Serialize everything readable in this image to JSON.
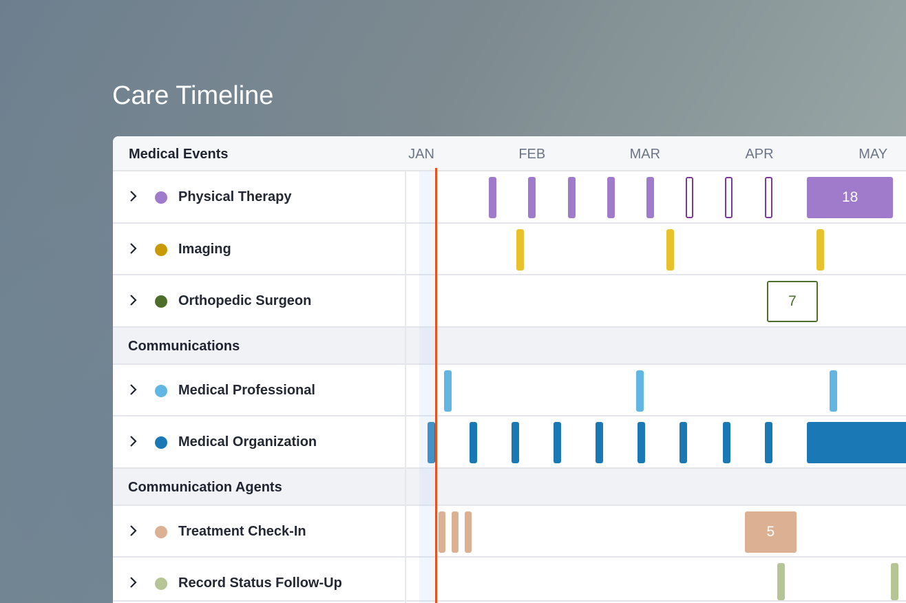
{
  "title": "Care Timeline",
  "header": {
    "label": "Medical Events",
    "months": [
      {
        "label": "JAN",
        "day": 0
      },
      {
        "label": "FEB",
        "day": 29.5
      },
      {
        "label": "MAR",
        "day": 59.6
      },
      {
        "label": "APR",
        "day": 90.1
      },
      {
        "label": "MAY",
        "day": 120.4
      }
    ]
  },
  "today_day": 3.9,
  "rows": [
    {
      "type": "track",
      "label": "Physical Therapy",
      "color": "#a07bcc",
      "events": [
        {
          "day": 19
        },
        {
          "day": 29.5
        },
        {
          "day": 40
        },
        {
          "day": 50.5
        },
        {
          "day": 61
        },
        {
          "day": 71.5,
          "outline": "#7b3a98"
        },
        {
          "day": 82,
          "outline": "#7b3a98"
        },
        {
          "day": 92.5,
          "outline": "#7b3a98"
        },
        {
          "start": 102.8,
          "end": 125.7,
          "count": "18"
        }
      ]
    },
    {
      "type": "track",
      "label": "Imaging",
      "color": "#e9c12c",
      "dot": "#c99a06",
      "events": [
        {
          "day": 26.4
        },
        {
          "day": 66.4
        },
        {
          "day": 106.4
        }
      ]
    },
    {
      "type": "track",
      "label": "Orthopedic Surgeon",
      "color": "#4d6e2a",
      "events": [
        {
          "start": 92.1,
          "end": 105.7,
          "count": "7",
          "outline": "#4d6e2a"
        }
      ]
    },
    {
      "type": "section",
      "label": "Communications"
    },
    {
      "type": "track",
      "label": "Medical Professional",
      "color": "#62b6e4",
      "events": [
        {
          "day": 7
        },
        {
          "day": 58.3
        },
        {
          "day": 109.9
        }
      ]
    },
    {
      "type": "track",
      "label": "Medical Organization",
      "color": "#1a78b4",
      "events": [
        {
          "day": 2.6
        },
        {
          "day": 13.8
        },
        {
          "day": 25
        },
        {
          "day": 36.3
        },
        {
          "day": 47.5
        },
        {
          "day": 58.7
        },
        {
          "day": 69.9
        },
        {
          "day": 81.3
        },
        {
          "day": 92.5
        },
        {
          "start": 102.8,
          "end": 135
        }
      ]
    },
    {
      "type": "section",
      "label": "Communication Agents"
    },
    {
      "type": "track",
      "label": "Treatment Check-In",
      "color": "#dbb093",
      "events": [
        {
          "day": 5.5
        },
        {
          "day": 9
        },
        {
          "day": 12.5
        },
        {
          "start": 86.2,
          "end": 100,
          "count": "5"
        }
      ]
    },
    {
      "type": "track",
      "label": "Record Status Follow-Up",
      "color": "#b6c596",
      "events": [
        {
          "day": 95.8
        },
        {
          "day": 126.2
        }
      ]
    }
  ]
}
